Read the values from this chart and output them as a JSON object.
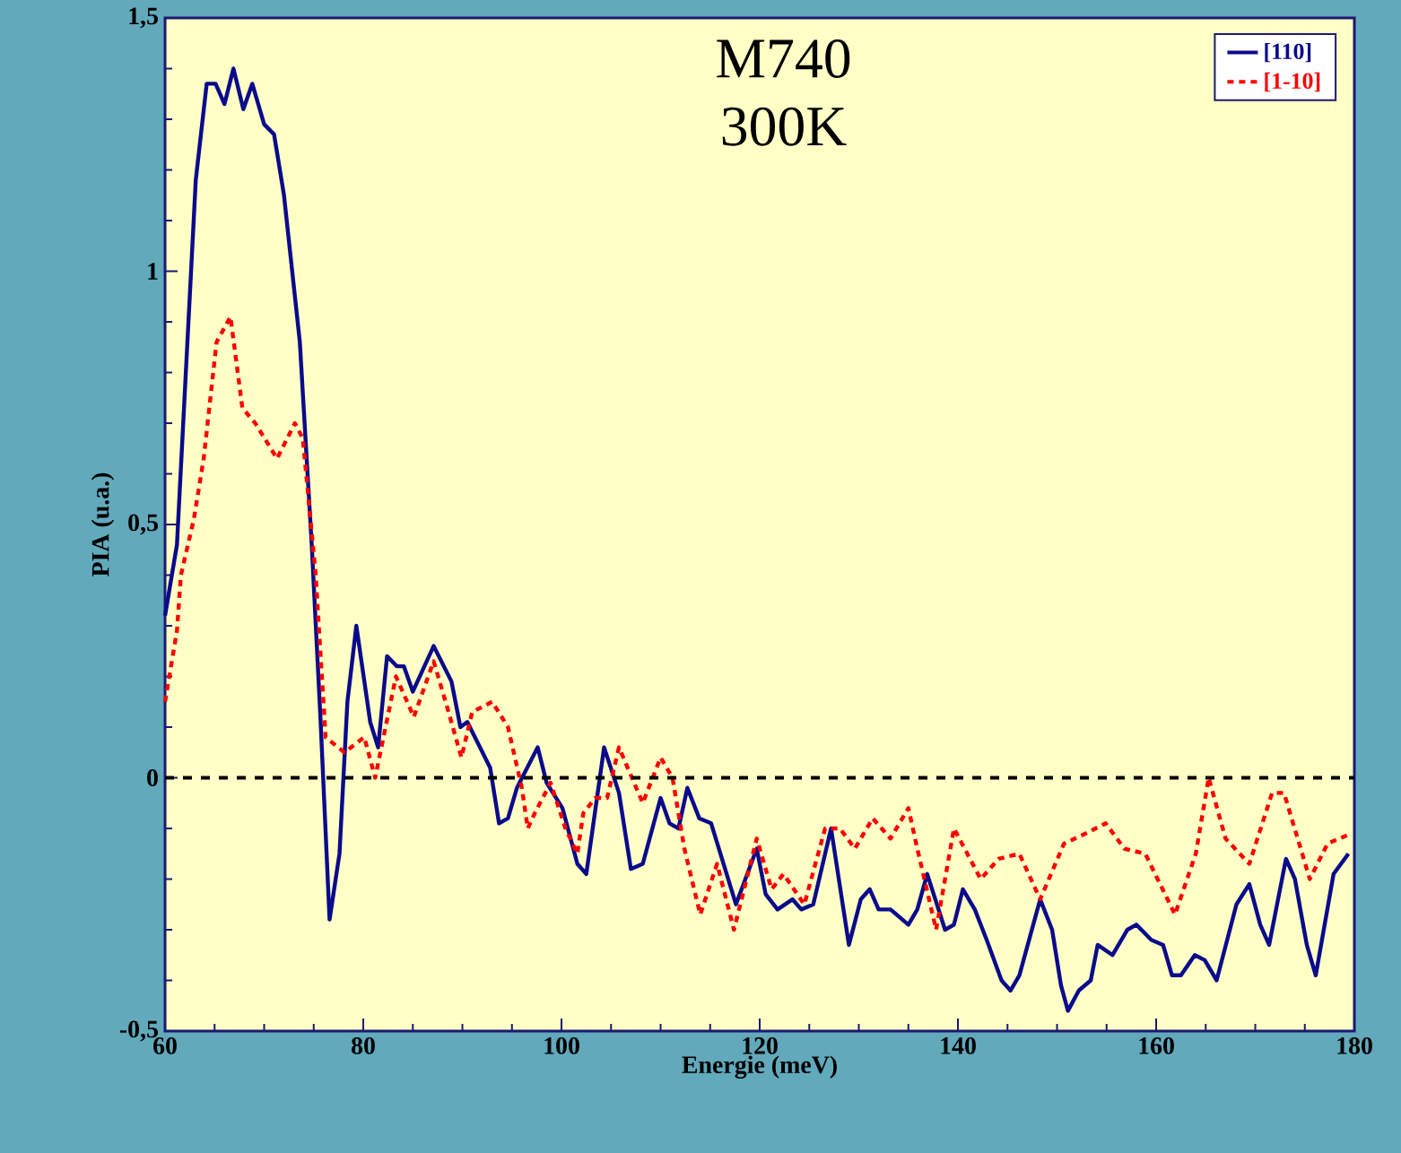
{
  "chart_data": {
    "type": "line",
    "title": "M740",
    "subtitle": "300K",
    "xlabel": "Energie (meV)",
    "ylabel": "PIA (u.a.)",
    "x": [
      60,
      61.2,
      63.1,
      64.2,
      65.1,
      66.0,
      66.9,
      67.9,
      68.8,
      70.0,
      71.0,
      72.0,
      73.6,
      74.8,
      75.7,
      76.6,
      77.6,
      78.4,
      79.3,
      80.7,
      81.5,
      82.4,
      83.4,
      84.1,
      85.0,
      87.1,
      88.9,
      89.8,
      90.5,
      92.8,
      93.7,
      94.6,
      95.5,
      97.6,
      98.5,
      100.1,
      101.6,
      102.5,
      104.3,
      105.8,
      107.0,
      108.2,
      110.0,
      110.9,
      111.8,
      112.7,
      113.9,
      115.1,
      117.6,
      119.7,
      120.6,
      121.8,
      123.3,
      124.2,
      125.4,
      127.2,
      129.0,
      130.2,
      131.1,
      132.0,
      133.2,
      135.0,
      135.9,
      136.9,
      138.7,
      139.6,
      140.5,
      141.7,
      142.9,
      144.4,
      145.3,
      146.2,
      148.3,
      149.5,
      150.4,
      151.1,
      152.2,
      153.4,
      154.1,
      155.6,
      157.1,
      158.0,
      159.5,
      160.7,
      161.6,
      162.5,
      163.9,
      164.9,
      166.1,
      168.1,
      169.4,
      170.5,
      171.4,
      173.1,
      174.0,
      175.2,
      176.1,
      177.9,
      179.4
    ],
    "series": [
      {
        "name": "[110]",
        "color": "#0a0a8c",
        "line_style": "solid",
        "values": [
          0.32,
          0.46,
          1.18,
          1.37,
          1.37,
          1.33,
          1.4,
          1.32,
          1.37,
          1.29,
          1.27,
          1.15,
          0.86,
          0.46,
          0.11,
          -0.28,
          -0.15,
          0.15,
          0.3,
          0.11,
          0.06,
          0.24,
          0.22,
          0.22,
          0.17,
          0.26,
          0.19,
          0.1,
          0.11,
          0.02,
          -0.09,
          -0.08,
          -0.02,
          0.06,
          -0.01,
          -0.06,
          -0.17,
          -0.19,
          0.06,
          -0.03,
          -0.18,
          -0.17,
          -0.04,
          -0.09,
          -0.1,
          -0.02,
          -0.08,
          -0.09,
          -0.25,
          -0.14,
          -0.23,
          -0.26,
          -0.24,
          -0.26,
          -0.25,
          -0.1,
          -0.33,
          -0.24,
          -0.22,
          -0.26,
          -0.26,
          -0.29,
          -0.26,
          -0.19,
          -0.3,
          -0.29,
          -0.22,
          -0.26,
          -0.32,
          -0.4,
          -0.42,
          -0.39,
          -0.24,
          -0.3,
          -0.41,
          -0.46,
          -0.42,
          -0.4,
          -0.33,
          -0.35,
          -0.3,
          -0.29,
          -0.32,
          -0.33,
          -0.39,
          -0.39,
          -0.35,
          -0.36,
          -0.4,
          -0.25,
          -0.21,
          -0.29,
          -0.33,
          -0.16,
          -0.2,
          -0.33,
          -0.39,
          -0.19,
          -0.15
        ]
      },
      {
        "name": "[1-10]",
        "color": "#ff0000",
        "line_style": "dashed",
        "x": [
          60,
          61.2,
          61.6,
          62.9,
          63.9,
          65.2,
          66.6,
          67.8,
          69.1,
          71.3,
          73.1,
          73.9,
          75.2,
          76.2,
          78.1,
          80.1,
          81.2,
          83.3,
          85.1,
          87.1,
          88.6,
          89.9,
          91.0,
          93.0,
          94.6,
          96.0,
          96.6,
          97.3,
          98.9,
          100.4,
          101.6,
          102.2,
          103.4,
          104.6,
          105.8,
          108.2,
          110.0,
          111.2,
          112.4,
          114.0,
          115.7,
          117.4,
          119.7,
          121.2,
          122.4,
          124.5,
          126.6,
          128.1,
          129.6,
          131.4,
          133.2,
          135.0,
          135.9,
          137.8,
          139.6,
          142.3,
          144.1,
          146.2,
          148.3,
          150.7,
          152.9,
          154.9,
          156.8,
          158.9,
          161.9,
          164.0,
          165.3,
          167.0,
          169.4,
          171.7,
          172.9,
          175.5,
          177.3,
          179.7
        ],
        "values": [
          0.15,
          0.29,
          0.4,
          0.51,
          0.63,
          0.86,
          0.91,
          0.73,
          0.7,
          0.63,
          0.7,
          0.67,
          0.4,
          0.08,
          0.05,
          0.08,
          0.0,
          0.2,
          0.12,
          0.23,
          0.13,
          0.04,
          0.13,
          0.15,
          0.1,
          -0.02,
          -0.1,
          -0.07,
          -0.01,
          -0.1,
          -0.15,
          -0.07,
          -0.04,
          -0.04,
          0.06,
          -0.05,
          0.04,
          0.0,
          -0.14,
          -0.27,
          -0.17,
          -0.3,
          -0.12,
          -0.22,
          -0.19,
          -0.25,
          -0.1,
          -0.1,
          -0.14,
          -0.08,
          -0.12,
          -0.06,
          -0.14,
          -0.3,
          -0.1,
          -0.2,
          -0.16,
          -0.15,
          -0.24,
          -0.13,
          -0.11,
          -0.09,
          -0.14,
          -0.15,
          -0.27,
          -0.15,
          0.0,
          -0.12,
          -0.17,
          -0.03,
          -0.03,
          -0.2,
          -0.13,
          -0.11
        ]
      }
    ],
    "xlim": [
      60,
      180
    ],
    "ylim": [
      -0.5,
      1.5
    ],
    "xticks": [
      60,
      80,
      100,
      120,
      140,
      160,
      180
    ],
    "yticks": [
      {
        "value": -0.5,
        "label": "-0,5"
      },
      {
        "value": 0,
        "label": "0"
      },
      {
        "value": 0.5,
        "label": "0,5"
      },
      {
        "value": 1,
        "label": "1"
      },
      {
        "value": 1.5,
        "label": "1,5"
      }
    ],
    "ref_lines": [
      {
        "axis": "y",
        "value": 0,
        "color": "#000000",
        "line_style": "dashed"
      }
    ],
    "legend": "top right"
  }
}
